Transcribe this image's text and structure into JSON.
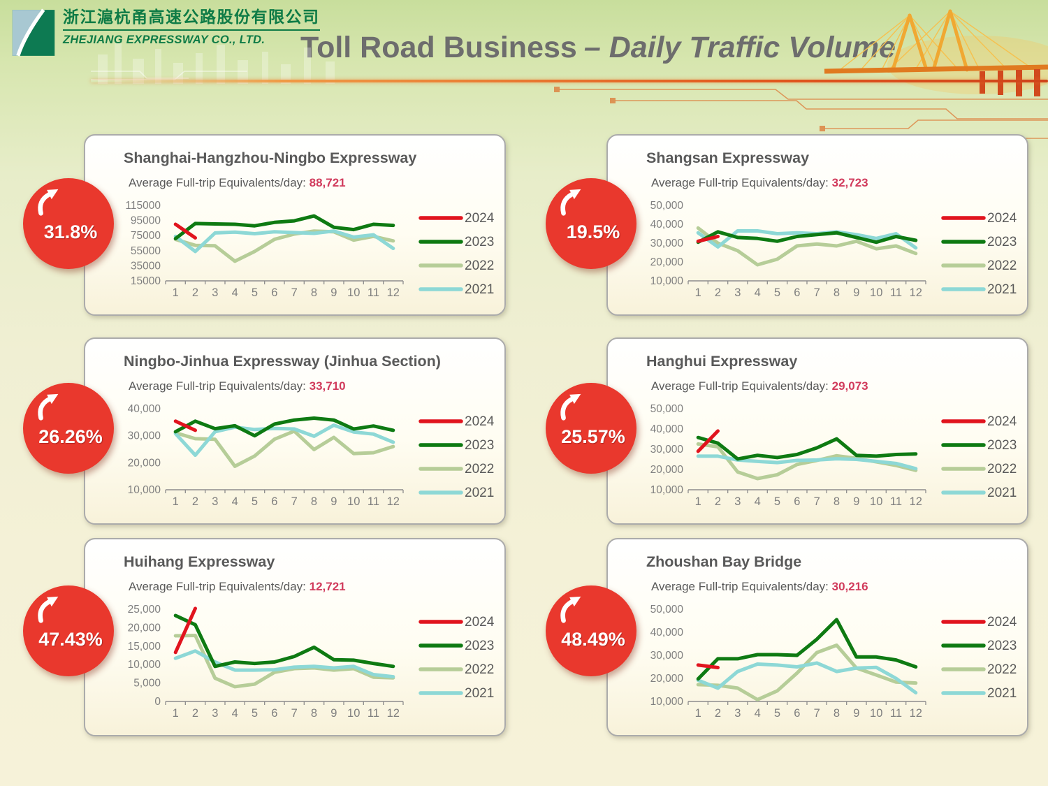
{
  "header": {
    "logo_company_cn": "浙江滬杭甬高速公路股份有限公司",
    "logo_company_en": "ZHEJIANG EXPRESSWAY CO., LTD.",
    "title_main": "Toll Road Business",
    "title_sub": "– Daily Traffic Volume"
  },
  "colors": {
    "series": {
      "2024": "#e1141e",
      "2023": "#0e7a12",
      "2022": "#b6cd98",
      "2021": "#8dd8d6"
    },
    "badge_red": "#e9382d",
    "avg_value_red": "#d13b5c",
    "title_gray": "#6d6d6d",
    "panel_text_gray": "#595959",
    "axis_gray": "#8c8c8c",
    "brand_green": "#0e7b46",
    "divider_orange": "#e2571d"
  },
  "panels": [
    {
      "title": "Shanghai-Hangzhou-Ningbo Expressway",
      "average_label": "Average Full-trip Equivalents/day:",
      "average_value": "88,721",
      "growth_badge": "31.8%",
      "chart_index": 0
    },
    {
      "title": "Shangsan Expressway",
      "average_label": "Average Full-trip Equivalents/day:",
      "average_value": "32,723",
      "growth_badge": "19.5%",
      "chart_index": 1
    },
    {
      "title": "Ningbo-Jinhua Expressway (Jinhua Section)",
      "average_label": "Average Full-trip Equivalents/day:",
      "average_value": "33,710",
      "growth_badge": "26.26%",
      "chart_index": 2
    },
    {
      "title": "Hanghui Expressway",
      "average_label": "Average Full-trip Equivalents/day:",
      "average_value": "29,073",
      "growth_badge": "25.57%",
      "chart_index": 3
    },
    {
      "title": "Huihang Expressway",
      "average_label": "Average Full-trip Equivalents/day:",
      "average_value": "12,721",
      "growth_badge": "47.43%",
      "chart_index": 4
    },
    {
      "title": "Zhoushan Bay Bridge",
      "average_label": "Average Full-trip Equivalents/day:",
      "average_value": "30,216",
      "growth_badge": "48.49%",
      "chart_index": 5
    }
  ],
  "chart_data": [
    {
      "type": "line",
      "title": "Shanghai-Hangzhou-Ningbo Expressway",
      "x": [
        "1",
        "2",
        "3",
        "4",
        "5",
        "6",
        "7",
        "8",
        "9",
        "10",
        "11",
        "12"
      ],
      "ylim": [
        15000,
        115000
      ],
      "yticks": [
        "115000",
        "95000",
        "75000",
        "55000",
        "35000",
        "15000"
      ],
      "grid": false,
      "legend_position": "right",
      "series": [
        {
          "name": "2024",
          "values": [
            90000,
            72000
          ]
        },
        {
          "name": "2023",
          "values": [
            71000,
            91000,
            90500,
            90000,
            88000,
            92500,
            94500,
            101000,
            86000,
            83000,
            90000,
            88500
          ]
        },
        {
          "name": "2022",
          "values": [
            70000,
            62000,
            61500,
            41000,
            54000,
            70000,
            77000,
            81000,
            80000,
            69000,
            74000,
            68000
          ]
        },
        {
          "name": "2021",
          "values": [
            74000,
            54000,
            78500,
            79500,
            77500,
            80000,
            79000,
            78000,
            81000,
            73000,
            76000,
            58000
          ]
        }
      ]
    },
    {
      "type": "line",
      "title": "Shangsan Expressway",
      "x": [
        "1",
        "2",
        "3",
        "4",
        "5",
        "6",
        "7",
        "8",
        "9",
        "10",
        "11",
        "12"
      ],
      "ylim": [
        10000,
        50000
      ],
      "yticks": [
        "50,000",
        "40,000",
        "30,000",
        "20,000",
        "10,000"
      ],
      "grid": false,
      "legend_position": "right",
      "series": [
        {
          "name": "2024",
          "values": [
            31000,
            33500
          ]
        },
        {
          "name": "2023",
          "values": [
            30500,
            36000,
            33000,
            32500,
            31000,
            33500,
            34500,
            35500,
            33000,
            30500,
            33500,
            31500
          ]
        },
        {
          "name": "2022",
          "values": [
            38000,
            30000,
            26000,
            18500,
            21500,
            28500,
            29500,
            28500,
            31000,
            27000,
            28500,
            24500
          ]
        },
        {
          "name": "2021",
          "values": [
            35500,
            28000,
            36500,
            36500,
            35000,
            35500,
            35000,
            36000,
            34500,
            32500,
            35000,
            27500
          ]
        }
      ]
    },
    {
      "type": "line",
      "title": "Ningbo-Jinhua Expressway (Jinhua Section)",
      "x": [
        "1",
        "2",
        "3",
        "4",
        "5",
        "6",
        "7",
        "8",
        "9",
        "10",
        "11",
        "12"
      ],
      "ylim": [
        10000,
        40000
      ],
      "yticks": [
        "40,000",
        "30,000",
        "20,000",
        "10,000"
      ],
      "grid": false,
      "legend_position": "right",
      "series": [
        {
          "name": "2024",
          "values": [
            35400,
            32000
          ]
        },
        {
          "name": "2023",
          "values": [
            31500,
            35400,
            32600,
            33700,
            30000,
            34300,
            35800,
            36500,
            35800,
            32500,
            33600,
            32000
          ]
        },
        {
          "name": "2022",
          "values": [
            31100,
            28900,
            28700,
            18700,
            22500,
            28700,
            31700,
            24900,
            29400,
            23400,
            23700,
            26000
          ]
        },
        {
          "name": "2021",
          "values": [
            30800,
            22800,
            31500,
            33200,
            32300,
            32700,
            32500,
            29800,
            33900,
            31400,
            30600,
            27600
          ]
        }
      ]
    },
    {
      "type": "line",
      "title": "Hanghui Expressway",
      "x": [
        "1",
        "2",
        "3",
        "4",
        "5",
        "6",
        "7",
        "8",
        "9",
        "10",
        "11",
        "12"
      ],
      "ylim": [
        10000,
        50000
      ],
      "yticks": [
        "50,000",
        "40,000",
        "30,000",
        "20,000",
        "10,000"
      ],
      "grid": false,
      "legend_position": "right",
      "series": [
        {
          "name": "2024",
          "values": [
            29000,
            39000
          ]
        },
        {
          "name": "2023",
          "values": [
            35800,
            33000,
            25200,
            27000,
            25900,
            27400,
            30700,
            35100,
            27000,
            26600,
            27400,
            27700
          ]
        },
        {
          "name": "2022",
          "values": [
            32600,
            31200,
            18800,
            15500,
            17400,
            22500,
            24500,
            26800,
            25500,
            23800,
            22000,
            19600
          ]
        },
        {
          "name": "2021",
          "values": [
            26600,
            26600,
            24700,
            24000,
            23400,
            24500,
            24700,
            25300,
            25000,
            24000,
            23000,
            20400
          ]
        }
      ]
    },
    {
      "type": "line",
      "title": "Huihang Expressway",
      "x": [
        "1",
        "2",
        "3",
        "4",
        "5",
        "6",
        "7",
        "8",
        "9",
        "10",
        "11",
        "12"
      ],
      "ylim": [
        0,
        25000
      ],
      "yticks": [
        "25,000",
        "20,000",
        "15,000",
        "10,000",
        "5,000",
        "0"
      ],
      "grid": false,
      "legend_position": "right",
      "series": [
        {
          "name": "2024",
          "values": [
            13300,
            25200
          ]
        },
        {
          "name": "2023",
          "values": [
            23300,
            20800,
            9500,
            10700,
            10300,
            10700,
            12200,
            14700,
            11300,
            11200,
            10300,
            9500
          ]
        },
        {
          "name": "2022",
          "values": [
            17800,
            17900,
            6300,
            4000,
            4700,
            7900,
            8900,
            9100,
            8500,
            8900,
            6600,
            6400
          ]
        },
        {
          "name": "2021",
          "values": [
            11700,
            13700,
            10700,
            8500,
            8500,
            8600,
            9300,
            9500,
            9100,
            9500,
            7300,
            6700
          ]
        }
      ]
    },
    {
      "type": "line",
      "title": "Zhoushan Bay Bridge",
      "x": [
        "1",
        "2",
        "3",
        "4",
        "5",
        "6",
        "7",
        "8",
        "9",
        "10",
        "11",
        "12"
      ],
      "ylim": [
        10000,
        50000
      ],
      "yticks": [
        "50,000",
        "40,000",
        "30,000",
        "20,000",
        "10,000"
      ],
      "grid": false,
      "legend_position": "right",
      "series": [
        {
          "name": "2024",
          "values": [
            25800,
            24700
          ]
        },
        {
          "name": "2023",
          "values": [
            19800,
            28500,
            28500,
            30300,
            30300,
            30000,
            37000,
            45500,
            29300,
            29300,
            28000,
            25000
          ]
        },
        {
          "name": "2022",
          "values": [
            17300,
            17000,
            15800,
            10800,
            14600,
            22300,
            31200,
            34400,
            24500,
            21500,
            18400,
            18000
          ]
        },
        {
          "name": "2021",
          "values": [
            19200,
            15800,
            23000,
            26200,
            25800,
            25000,
            26700,
            23000,
            24500,
            24800,
            20000,
            13800
          ]
        }
      ]
    }
  ]
}
